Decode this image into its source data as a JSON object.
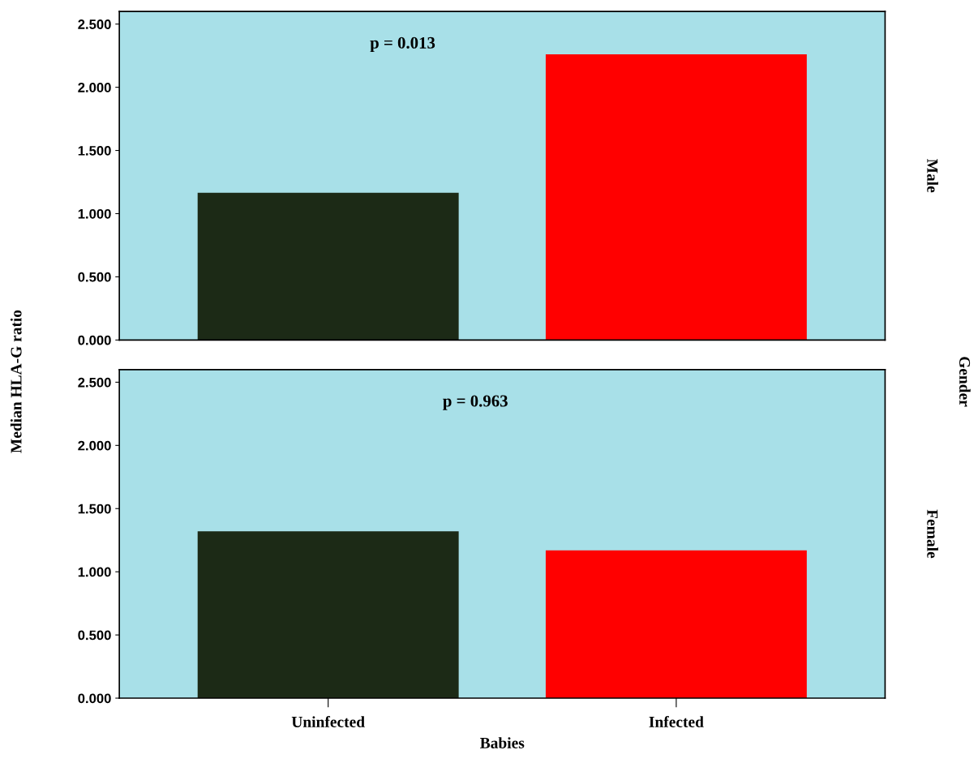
{
  "chart_data": [
    {
      "type": "bar",
      "ylabel": "Median HLA-G ratio",
      "y2label": "Male",
      "categories": [
        null,
        null
      ],
      "values": [
        1.165,
        2.26
      ],
      "colors": [
        "#1c2a16",
        "#ff0000"
      ],
      "ylim": [
        0,
        2.6
      ],
      "yticks": [
        {
          "value": 0,
          "label": "0.000"
        },
        {
          "value": 0.5,
          "label": "0.500"
        },
        {
          "value": 1,
          "label": "1.000"
        },
        {
          "value": 1.5,
          "label": "1.500"
        },
        {
          "value": 2,
          "label": "2.000"
        },
        {
          "value": 2.5,
          "label": "2.500"
        }
      ],
      "annotations": [
        "p = 0.013",
        "Gender"
      ],
      "tick_labels": "y",
      "grid": false,
      "legend": false
    },
    {
      "type": "bar",
      "xlabel": "Babies",
      "y2label": "Female",
      "categories": [
        "Uninfected",
        "Infected"
      ],
      "values": [
        1.32,
        1.17
      ],
      "colors": [
        "#1c2a16",
        "#ff0000"
      ],
      "ylim": [
        0,
        2.6
      ],
      "yticks": [
        {
          "value": 0,
          "label": "0.000"
        },
        {
          "value": 0.5,
          "label": "0.500"
        },
        {
          "value": 1,
          "label": "1.000"
        },
        {
          "value": 1.5,
          "label": "1.500"
        },
        {
          "value": 2,
          "label": "2.000"
        },
        {
          "value": 2.5,
          "label": "2.500"
        }
      ],
      "annotations": [
        "p = 0.963"
      ],
      "grid": false,
      "legend": false
    }
  ]
}
